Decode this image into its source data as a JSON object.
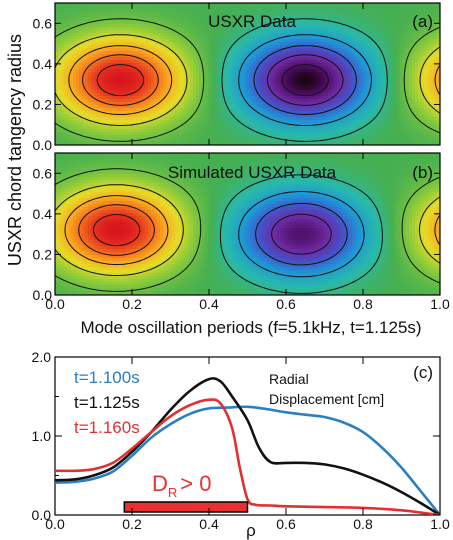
{
  "chart_data": [
    {
      "type": "heatmap",
      "panel_label": "(a)",
      "title": "USXR Data",
      "xlim": [
        0.0,
        1.0
      ],
      "ylim": [
        0.0,
        0.7
      ],
      "yticks": [
        "0.0",
        "0.2",
        "0.4",
        "0.6"
      ],
      "xticks": [],
      "features": [
        {
          "kind": "positive-lobe",
          "x": 0.17,
          "y": 0.32,
          "peak": 1.0
        },
        {
          "kind": "negative-lobe",
          "x": 0.65,
          "y": 0.32,
          "peak": -1.0
        },
        {
          "kind": "positive-lobe",
          "x": 1.12,
          "y": 0.32,
          "peak": 1.0
        }
      ]
    },
    {
      "type": "heatmap",
      "panel_label": "(b)",
      "title": "Simulated USXR Data",
      "xlim": [
        0.0,
        1.0
      ],
      "ylim": [
        0.0,
        0.7
      ],
      "yticks": [
        "0.0",
        "0.2",
        "0.4",
        "0.6"
      ],
      "xticks": [
        "0.0",
        "0.2",
        "0.4",
        "0.6",
        "0.8",
        "1.0"
      ],
      "xlabel": "Mode oscillation periods (f=5.1kHz, t=1.125s)",
      "features": [
        {
          "kind": "positive-lobe",
          "x": 0.16,
          "y": 0.32,
          "peak": 1.0
        },
        {
          "kind": "negative-lobe",
          "x": 0.64,
          "y": 0.3,
          "peak": -0.85
        },
        {
          "kind": "positive-lobe",
          "x": 1.12,
          "y": 0.32,
          "peak": 1.0
        }
      ]
    },
    {
      "type": "line",
      "panel_label": "(c)",
      "annotation": "Radial Displacement [cm]",
      "xlabel": "ρ",
      "xlim": [
        0.0,
        1.0
      ],
      "ylim": [
        0.0,
        2.0
      ],
      "xticks": [
        "0.0",
        "0.2",
        "0.4",
        "0.6",
        "0.8",
        "1.0"
      ],
      "yticks": [
        "0.0",
        "1.0",
        "2.0"
      ],
      "region_label_main": "D",
      "region_label_sub": "R",
      "region_label_rest": "> 0",
      "region": {
        "x_start": 0.18,
        "x_end": 0.5
      },
      "series": [
        {
          "name": "t=1.100s",
          "color": "#2a7fc4",
          "points": [
            [
              0.0,
              0.41
            ],
            [
              0.05,
              0.42
            ],
            [
              0.1,
              0.46
            ],
            [
              0.15,
              0.55
            ],
            [
              0.2,
              0.75
            ],
            [
              0.25,
              0.98
            ],
            [
              0.3,
              1.15
            ],
            [
              0.35,
              1.28
            ],
            [
              0.4,
              1.35
            ],
            [
              0.45,
              1.36
            ],
            [
              0.5,
              1.37
            ],
            [
              0.55,
              1.34
            ],
            [
              0.6,
              1.3
            ],
            [
              0.65,
              1.27
            ],
            [
              0.7,
              1.24
            ],
            [
              0.75,
              1.17
            ],
            [
              0.8,
              1.05
            ],
            [
              0.85,
              0.85
            ],
            [
              0.9,
              0.6
            ],
            [
              0.95,
              0.3
            ],
            [
              1.0,
              0.0
            ]
          ]
        },
        {
          "name": "t=1.125s",
          "color": "#111111",
          "points": [
            [
              0.0,
              0.44
            ],
            [
              0.05,
              0.45
            ],
            [
              0.1,
              0.5
            ],
            [
              0.15,
              0.6
            ],
            [
              0.2,
              0.8
            ],
            [
              0.25,
              1.05
            ],
            [
              0.3,
              1.33
            ],
            [
              0.35,
              1.57
            ],
            [
              0.4,
              1.72
            ],
            [
              0.43,
              1.69
            ],
            [
              0.46,
              1.5
            ],
            [
              0.5,
              1.2
            ],
            [
              0.53,
              0.85
            ],
            [
              0.56,
              0.67
            ],
            [
              0.6,
              0.66
            ],
            [
              0.65,
              0.66
            ],
            [
              0.7,
              0.64
            ],
            [
              0.75,
              0.59
            ],
            [
              0.8,
              0.51
            ],
            [
              0.85,
              0.41
            ],
            [
              0.9,
              0.29
            ],
            [
              0.95,
              0.15
            ],
            [
              1.0,
              0.0
            ]
          ]
        },
        {
          "name": "t=1.160s",
          "color": "#e03030",
          "points": [
            [
              0.0,
              0.56
            ],
            [
              0.05,
              0.56
            ],
            [
              0.1,
              0.58
            ],
            [
              0.15,
              0.66
            ],
            [
              0.2,
              0.84
            ],
            [
              0.25,
              1.05
            ],
            [
              0.3,
              1.25
            ],
            [
              0.35,
              1.39
            ],
            [
              0.4,
              1.46
            ],
            [
              0.43,
              1.41
            ],
            [
              0.46,
              1.1
            ],
            [
              0.48,
              0.6
            ],
            [
              0.5,
              0.2
            ],
            [
              0.52,
              0.13
            ],
            [
              0.56,
              0.12
            ],
            [
              0.6,
              0.11
            ],
            [
              0.7,
              0.1
            ],
            [
              0.8,
              0.09
            ],
            [
              0.9,
              0.06
            ],
            [
              0.95,
              0.03
            ],
            [
              1.0,
              0.0
            ]
          ]
        }
      ]
    }
  ],
  "ylabel_shared": "USXR chord tangency radius"
}
